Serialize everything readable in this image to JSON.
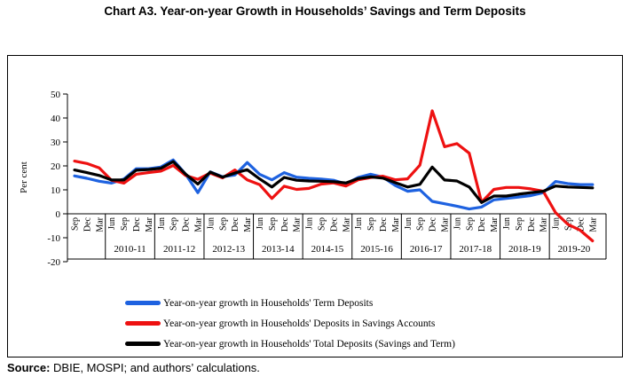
{
  "title": "Chart A3. Year-on-year Growth in Households’ Savings and Term Deposits",
  "source_note": {
    "label": "Source:",
    "text": " DBIE, MOSPI; and authors’ calculations."
  },
  "chart_data": {
    "type": "line",
    "title": "Chart A3. Year-on-year Growth in Households’ Savings and Term Deposits",
    "xlabel": "",
    "ylabel": "Per cent",
    "ylim": [
      -20,
      50
    ],
    "yticks": [
      50,
      40,
      30,
      20,
      10,
      0,
      -10,
      -20
    ],
    "grid": false,
    "legend_position": "bottom-inside",
    "quarter_labels": [
      "Sep",
      "Dec",
      "Mar",
      "Jun",
      "Sep",
      "Dec",
      "Mar",
      "Jun",
      "Sep",
      "Dec",
      "Mar",
      "Jun",
      "Sep",
      "Dec",
      "Mar",
      "Jun",
      "Sep",
      "Dec",
      "Mar",
      "Jun",
      "Sep",
      "Dec",
      "Mar",
      "Jun",
      "Sep",
      "Dec",
      "Mar",
      "Jun",
      "Sep",
      "Dec",
      "Mar",
      "Jun",
      "Sep",
      "Dec",
      "Mar",
      "Jun",
      "Sep",
      "Dec",
      "Mar",
      "Jun",
      "Sep",
      "Dec",
      "Mar"
    ],
    "year_groups": [
      {
        "label": "",
        "span": 3
      },
      {
        "label": "2010-11",
        "span": 4
      },
      {
        "label": "2011-12",
        "span": 4
      },
      {
        "label": "2012-13",
        "span": 4
      },
      {
        "label": "2013-14",
        "span": 4
      },
      {
        "label": "2014-15",
        "span": 4
      },
      {
        "label": "2015-16",
        "span": 4
      },
      {
        "label": "2016-17",
        "span": 4
      },
      {
        "label": "2017-18",
        "span": 4
      },
      {
        "label": "2018-19",
        "span": 4
      },
      {
        "label": "2019-20",
        "span": 4
      }
    ],
    "series": [
      {
        "name": "Year-on-year growth in Households' Term Deposits",
        "color": "#1e62e0",
        "values": [
          15.8,
          14.8,
          13.6,
          12.8,
          14.5,
          18.8,
          18.8,
          19.5,
          22.5,
          16.6,
          8.8,
          17.5,
          15.5,
          16.2,
          21.4,
          16.5,
          14.2,
          17.2,
          15.3,
          14.8,
          14.5,
          14.0,
          12.5,
          15.2,
          16.5,
          15.3,
          11.8,
          9.4,
          10.0,
          5.2,
          4.2,
          3.2,
          2.0,
          2.8,
          5.8,
          6.4,
          7.0,
          7.6,
          8.8,
          13.5,
          12.6,
          12.2,
          12.2
        ]
      },
      {
        "name": "Year-on-year growth in Households' Deposits in Savings Accounts",
        "color": "#ee1111",
        "values": [
          22.0,
          21.0,
          19.2,
          14.0,
          12.8,
          16.5,
          17.2,
          17.8,
          20.2,
          16.0,
          14.4,
          17.0,
          15.0,
          18.3,
          14.2,
          12.2,
          6.4,
          11.5,
          10.2,
          10.6,
          12.4,
          12.9,
          11.6,
          14.2,
          15.1,
          15.7,
          14.2,
          14.6,
          20.3,
          43.0,
          28.0,
          29.3,
          25.3,
          4.8,
          10.2,
          11.0,
          11.0,
          10.4,
          9.4,
          0.5,
          -4.4,
          -6.9,
          -11.3
        ]
      },
      {
        "name": "Year-on-year growth in Households' Total Deposits (Savings and Term)",
        "color": "#000000",
        "values": [
          18.3,
          17.2,
          16.0,
          14.1,
          14.1,
          18.2,
          18.5,
          19.0,
          21.8,
          16.6,
          12.4,
          17.4,
          15.3,
          17.0,
          18.4,
          14.6,
          11.2,
          15.2,
          14.0,
          13.7,
          13.6,
          13.4,
          12.9,
          14.7,
          15.4,
          14.9,
          13.0,
          11.2,
          12.3,
          19.5,
          14.1,
          13.7,
          11.2,
          4.7,
          7.4,
          7.4,
          8.2,
          8.8,
          9.4,
          11.6,
          11.2,
          11.0,
          10.8
        ]
      }
    ]
  }
}
